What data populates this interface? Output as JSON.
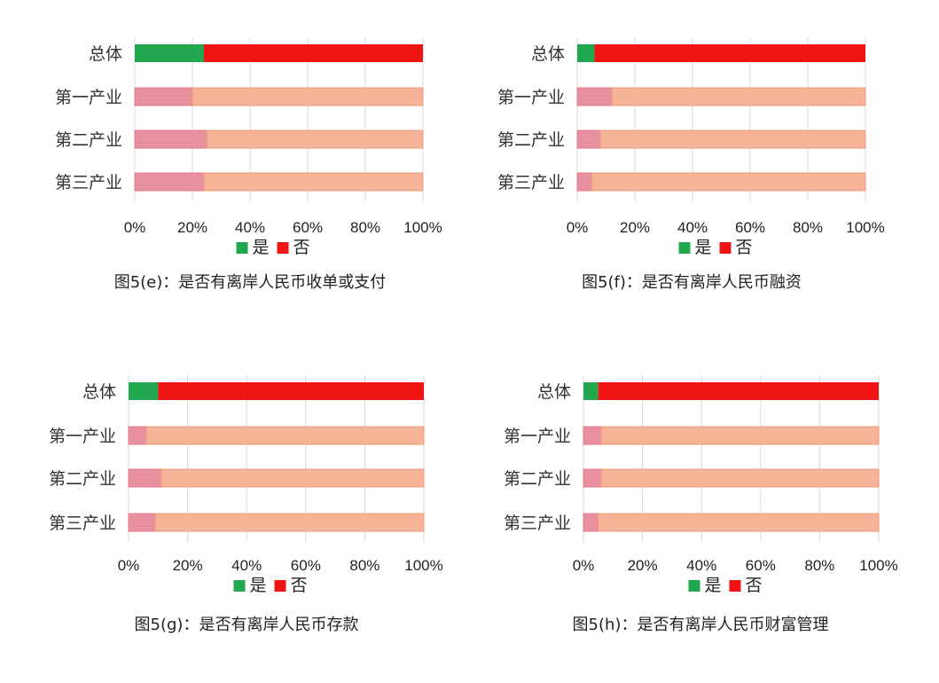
{
  "chart_data": [
    {
      "type": "bar",
      "orientation": "horizontal",
      "stacked": true,
      "categories": [
        "总体",
        "第一产业",
        "第二产业",
        "第三产业"
      ],
      "series": [
        {
          "name": "是",
          "values": [
            24,
            20,
            25,
            24
          ]
        },
        {
          "name": "否",
          "values": [
            76,
            80,
            75,
            76
          ]
        }
      ],
      "xticks": [
        "0%",
        "20%",
        "40%",
        "60%",
        "80%",
        "100%"
      ],
      "xlim": [
        0,
        100
      ],
      "legend_position": "bottom",
      "caption": "图5(e)：是否有离岸人民币收单或支付"
    },
    {
      "type": "bar",
      "orientation": "horizontal",
      "stacked": true,
      "categories": [
        "总体",
        "第一产业",
        "第二产业",
        "第三产业"
      ],
      "series": [
        {
          "name": "是",
          "values": [
            6,
            12,
            8,
            5
          ]
        },
        {
          "name": "否",
          "values": [
            94,
            88,
            92,
            95
          ]
        }
      ],
      "xticks": [
        "0%",
        "20%",
        "40%",
        "60%",
        "80%",
        "100%"
      ],
      "xlim": [
        0,
        100
      ],
      "legend_position": "bottom",
      "caption": "图5(f)：是否有离岸人民币融资"
    },
    {
      "type": "bar",
      "orientation": "horizontal",
      "stacked": true,
      "categories": [
        "总体",
        "第一产业",
        "第二产业",
        "第三产业"
      ],
      "series": [
        {
          "name": "是",
          "values": [
            10,
            6,
            11,
            9
          ]
        },
        {
          "name": "否",
          "values": [
            90,
            94,
            89,
            91
          ]
        }
      ],
      "xticks": [
        "0%",
        "20%",
        "40%",
        "60%",
        "80%",
        "100%"
      ],
      "xlim": [
        0,
        100
      ],
      "legend_position": "bottom",
      "caption": "图5(g)：是否有离岸人民币存款"
    },
    {
      "type": "bar",
      "orientation": "horizontal",
      "stacked": true,
      "categories": [
        "总体",
        "第一产业",
        "第二产业",
        "第三产业"
      ],
      "series": [
        {
          "name": "是",
          "values": [
            5,
            6,
            6,
            5
          ]
        },
        {
          "name": "否",
          "values": [
            95,
            94,
            94,
            95
          ]
        }
      ],
      "xticks": [
        "0%",
        "20%",
        "40%",
        "60%",
        "80%",
        "100%"
      ],
      "xlim": [
        0,
        100
      ],
      "legend_position": "bottom",
      "caption": "图5(h)：是否有离岸人民币财富管理"
    }
  ],
  "colors": {
    "yes_overall": "#21a84f",
    "no_overall": "#f01414",
    "yes_sector": "#e8909e",
    "no_sector": "#f5b397",
    "gridline": "#d9d9d9"
  }
}
